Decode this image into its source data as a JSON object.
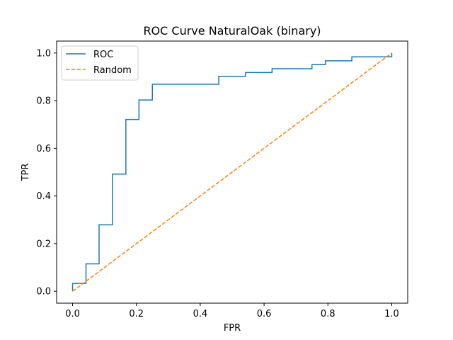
{
  "chart_data": {
    "type": "line",
    "title": "ROC Curve NaturalOak (binary)",
    "xlabel": "FPR",
    "ylabel": "TPR",
    "xlim": [
      -0.05,
      1.05
    ],
    "ylim": [
      -0.05,
      1.05
    ],
    "xticks": [
      0.0,
      0.2,
      0.4,
      0.6,
      0.8,
      1.0
    ],
    "yticks": [
      0.0,
      0.2,
      0.4,
      0.6,
      0.8,
      1.0
    ],
    "xtick_labels": [
      "0.0",
      "0.2",
      "0.4",
      "0.6",
      "0.8",
      "1.0"
    ],
    "ytick_labels": [
      "0.0",
      "0.2",
      "0.4",
      "0.6",
      "0.8",
      "1.0"
    ],
    "grid": false,
    "legend_position": "top-left",
    "series": [
      {
        "name": "ROC",
        "color": "#1f77b4",
        "style": "solid",
        "x": [
          0.0,
          0.0,
          0.042,
          0.042,
          0.083,
          0.083,
          0.125,
          0.125,
          0.167,
          0.167,
          0.208,
          0.208,
          0.25,
          0.25,
          0.458,
          0.458,
          0.542,
          0.542,
          0.625,
          0.625,
          0.75,
          0.75,
          0.792,
          0.792,
          0.875,
          0.875,
          1.0,
          1.0
        ],
        "y": [
          0.0,
          0.033,
          0.033,
          0.115,
          0.115,
          0.279,
          0.279,
          0.492,
          0.492,
          0.721,
          0.721,
          0.803,
          0.803,
          0.869,
          0.869,
          0.902,
          0.902,
          0.918,
          0.918,
          0.934,
          0.934,
          0.951,
          0.951,
          0.967,
          0.967,
          0.984,
          0.984,
          1.0
        ]
      },
      {
        "name": "Random",
        "color": "#ff7f0e",
        "style": "dashed",
        "x": [
          0.0,
          1.0
        ],
        "y": [
          0.0,
          1.0
        ]
      }
    ]
  }
}
